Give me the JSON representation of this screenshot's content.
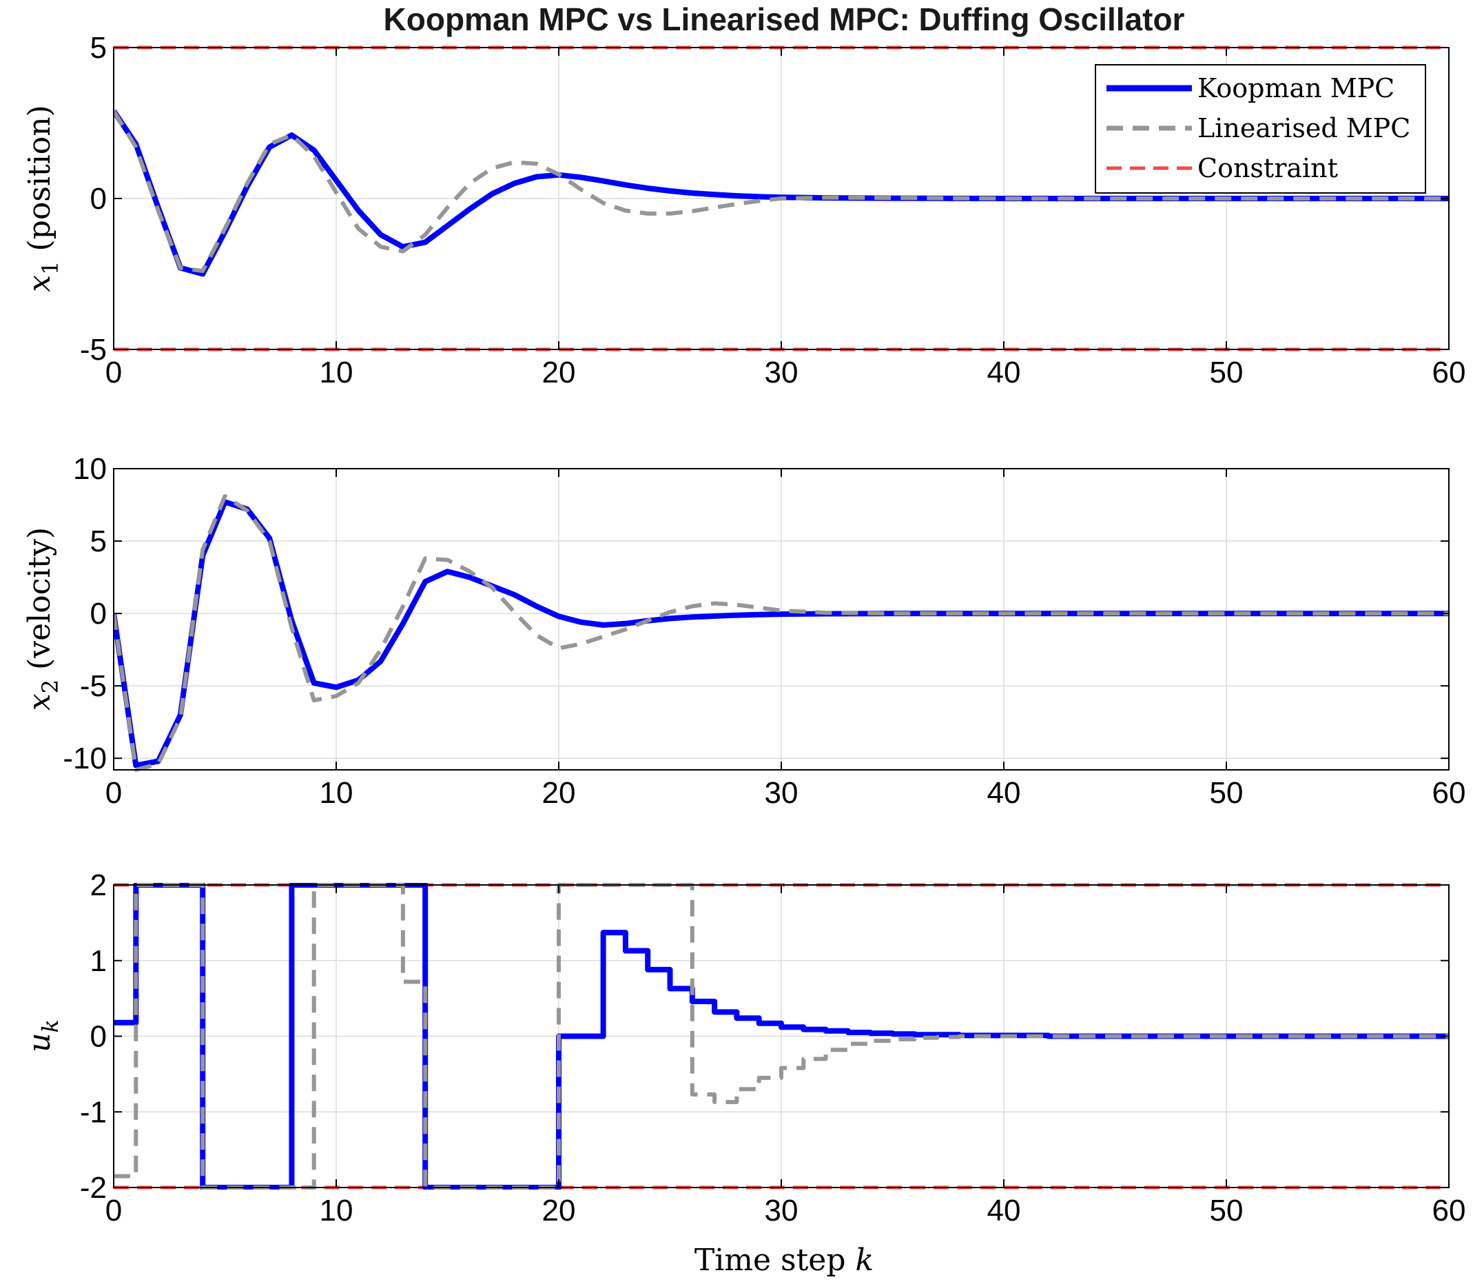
{
  "title": "Koopman MPC vs Linearised MPC: Duffing Oscillator",
  "legend": {
    "entries": [
      {
        "label": "Koopman MPC",
        "color": "#0000ff",
        "style": "solid"
      },
      {
        "label": "Linearised MPC",
        "color": "#969696",
        "style": "dashed"
      },
      {
        "label": "Constraint",
        "color": "#f04a4a",
        "style": "dashed"
      }
    ],
    "placement": "top-right of first subplot"
  },
  "colors": {
    "koopman": "#0000ff",
    "linearised": "#969696",
    "constraint": "#f04a4a"
  },
  "chart_data": [
    {
      "type": "line",
      "title": "Koopman MPC vs Linearised MPC: Duffing Oscillator",
      "xlabel": "",
      "ylabel": {
        "main": "x",
        "sub": "1",
        "rest": "(position)"
      },
      "xlim": [
        0,
        60
      ],
      "ylim": [
        -5,
        5
      ],
      "xticks": [
        "0",
        "10",
        "20",
        "30",
        "40",
        "50",
        "60"
      ],
      "yticks": [
        "-5",
        "0",
        "5"
      ],
      "ytick_values": [
        -5,
        0,
        5
      ],
      "xtick_values": [
        0,
        10,
        20,
        30,
        40,
        50,
        60
      ],
      "grid": true,
      "constraints": [
        5,
        -5
      ],
      "series": [
        {
          "name": "Koopman MPC",
          "x": [
            0,
            1,
            2,
            3,
            4,
            5,
            6,
            7,
            8,
            9,
            10,
            11,
            12,
            13,
            14,
            15,
            16,
            17,
            18,
            19,
            20,
            21,
            22,
            23,
            24,
            25,
            26,
            27,
            28,
            29,
            30,
            32,
            35,
            40,
            45,
            50,
            55,
            60
          ],
          "values": [
            2.9,
            1.8,
            -0.3,
            -2.3,
            -2.5,
            -1.1,
            0.4,
            1.7,
            2.1,
            1.6,
            0.6,
            -0.4,
            -1.2,
            -1.6,
            -1.45,
            -0.9,
            -0.35,
            0.15,
            0.5,
            0.72,
            0.78,
            0.7,
            0.58,
            0.45,
            0.34,
            0.25,
            0.18,
            0.13,
            0.09,
            0.06,
            0.04,
            0.02,
            0.01,
            0,
            0,
            0,
            0,
            0
          ]
        },
        {
          "name": "Linearised MPC",
          "x": [
            0,
            1,
            2,
            3,
            4,
            5,
            6,
            7,
            8,
            9,
            10,
            11,
            12,
            13,
            14,
            15,
            16,
            17,
            18,
            19,
            20,
            21,
            22,
            23,
            24,
            25,
            26,
            27,
            28,
            29,
            30,
            32,
            35,
            40,
            45,
            50,
            55,
            60
          ],
          "values": [
            2.9,
            1.7,
            -0.4,
            -2.3,
            -2.4,
            -1.0,
            0.5,
            1.8,
            2.1,
            1.4,
            0.2,
            -1.0,
            -1.6,
            -1.75,
            -1.2,
            -0.3,
            0.5,
            1.0,
            1.2,
            1.15,
            0.8,
            0.3,
            -0.15,
            -0.4,
            -0.5,
            -0.5,
            -0.42,
            -0.3,
            -0.18,
            -0.08,
            0,
            0.03,
            0.02,
            0,
            0,
            0,
            0,
            0
          ]
        }
      ]
    },
    {
      "type": "line",
      "title": "",
      "xlabel": "",
      "ylabel": {
        "main": "x",
        "sub": "2",
        "rest": "(velocity)"
      },
      "xlim": [
        0,
        60
      ],
      "ylim": [
        -10.8,
        10
      ],
      "xticks": [
        "0",
        "10",
        "20",
        "30",
        "40",
        "50",
        "60"
      ],
      "yticks": [
        "-10",
        "-5",
        "0",
        "5",
        "10"
      ],
      "ytick_values": [
        -10,
        -5,
        0,
        5,
        10
      ],
      "xtick_values": [
        0,
        10,
        20,
        30,
        40,
        50,
        60
      ],
      "grid": true,
      "series": [
        {
          "name": "Koopman MPC",
          "x": [
            0,
            1,
            2,
            3,
            4,
            5,
            6,
            7,
            8,
            9,
            10,
            11,
            12,
            13,
            14,
            15,
            16,
            17,
            18,
            19,
            20,
            21,
            22,
            23,
            24,
            25,
            26,
            27,
            28,
            29,
            30,
            32,
            35,
            40,
            45,
            50,
            55,
            60
          ],
          "values": [
            0,
            -10.5,
            -10.2,
            -7.0,
            4.0,
            7.7,
            7.2,
            5.2,
            -0.5,
            -4.8,
            -5.1,
            -4.6,
            -3.3,
            -0.7,
            2.2,
            2.9,
            2.5,
            1.9,
            1.3,
            0.5,
            -0.2,
            -0.6,
            -0.8,
            -0.7,
            -0.5,
            -0.35,
            -0.25,
            -0.18,
            -0.12,
            -0.08,
            -0.05,
            -0.02,
            0,
            0,
            0,
            0,
            0,
            0
          ]
        },
        {
          "name": "Linearised MPC",
          "x": [
            0,
            1,
            2,
            3,
            4,
            5,
            6,
            7,
            8,
            9,
            10,
            11,
            12,
            13,
            14,
            15,
            16,
            17,
            18,
            19,
            20,
            21,
            22,
            23,
            24,
            25,
            26,
            27,
            28,
            29,
            30,
            32,
            35,
            40,
            45,
            50,
            55,
            60
          ],
          "values": [
            0,
            -10.8,
            -10.4,
            -7.2,
            4.4,
            8.1,
            7.1,
            5.0,
            -1.0,
            -6.0,
            -5.7,
            -4.8,
            -2.5,
            0.5,
            3.8,
            3.7,
            2.9,
            1.8,
            0.1,
            -1.5,
            -2.4,
            -2.1,
            -1.6,
            -1.1,
            -0.5,
            0.1,
            0.5,
            0.7,
            0.6,
            0.4,
            0.2,
            0.05,
            0,
            0,
            0,
            0,
            0,
            0
          ]
        }
      ]
    },
    {
      "type": "line",
      "title": "",
      "xlabel": "Time step k",
      "ylabel": {
        "main": "u",
        "sub": "k",
        "rest": ""
      },
      "xlim": [
        0,
        60
      ],
      "ylim": [
        -2,
        2
      ],
      "xticks": [
        "0",
        "10",
        "20",
        "30",
        "40",
        "50",
        "60"
      ],
      "yticks": [
        "-2",
        "-1",
        "0",
        "1",
        "2"
      ],
      "ytick_values": [
        -2,
        -1,
        0,
        1,
        2
      ],
      "xtick_values": [
        0,
        10,
        20,
        30,
        40,
        50,
        60
      ],
      "grid": true,
      "constraints": [
        2,
        -2
      ],
      "step": true,
      "series": [
        {
          "name": "Koopman MPC",
          "values": [
            0.18,
            2,
            2,
            2,
            -2,
            -2,
            -2,
            -2,
            2,
            2,
            2,
            2,
            2,
            2,
            -2,
            -2,
            -2,
            -2,
            -2,
            -2,
            0,
            0,
            1.37,
            1.13,
            0.88,
            0.63,
            0.46,
            0.32,
            0.24,
            0.17,
            0.12,
            0.09,
            0.07,
            0.05,
            0.04,
            0.03,
            0.02,
            0.02,
            0.01,
            0.01,
            0.01,
            0.01,
            0,
            0,
            0,
            0,
            0,
            0,
            0,
            0,
            0,
            0,
            0,
            0,
            0,
            0,
            0,
            0,
            0,
            0
          ]
        },
        {
          "name": "Linearised MPC",
          "values": [
            -1.85,
            2,
            2,
            2,
            -2,
            -2,
            -2,
            -2,
            -2,
            2,
            2,
            2,
            2,
            0.72,
            -2,
            -2,
            -2,
            -2,
            -2,
            -2,
            2,
            2,
            2,
            2,
            2,
            2,
            -0.77,
            -0.87,
            -0.7,
            -0.55,
            -0.42,
            -0.3,
            -0.18,
            -0.1,
            -0.06,
            -0.04,
            -0.02,
            -0.01,
            0,
            0,
            0,
            0,
            0,
            0,
            0,
            0,
            0,
            0,
            0,
            0,
            0,
            0,
            0,
            0,
            0,
            0,
            0,
            0,
            0,
            0
          ]
        }
      ]
    }
  ]
}
